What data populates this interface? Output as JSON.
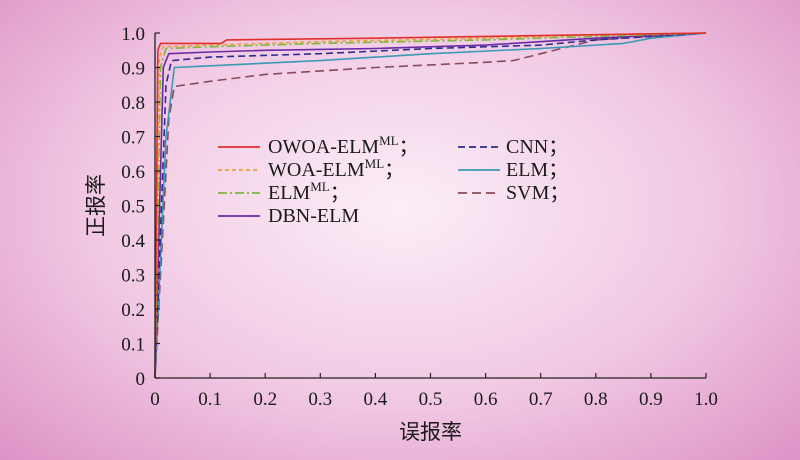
{
  "chart_data": {
    "type": "line",
    "title": "",
    "xlabel": "误报率",
    "ylabel": "正报率",
    "xlim": [
      0,
      1.0
    ],
    "ylim": [
      0,
      1.0
    ],
    "xticks": [
      "0",
      "0.1",
      "0.2",
      "0.3",
      "0.4",
      "0.5",
      "0.6",
      "0.7",
      "0.8",
      "0.9",
      "1.0"
    ],
    "yticks": [
      "0",
      "0.1",
      "0.2",
      "0.3",
      "0.4",
      "0.5",
      "0.6",
      "0.7",
      "0.8",
      "0.9",
      "1.0"
    ],
    "grid": false,
    "legend_position": "center-left, two columns",
    "series": [
      {
        "name": "OWOA-ELM",
        "superscript": "ML",
        "suffix": "；",
        "color": "#e0302a",
        "dash": "solid",
        "points": [
          [
            0,
            0
          ],
          [
            0.005,
            0.95
          ],
          [
            0.01,
            0.97
          ],
          [
            0.12,
            0.97
          ],
          [
            0.13,
            0.98
          ],
          [
            0.4,
            0.985
          ],
          [
            0.6,
            0.99
          ],
          [
            0.8,
            0.995
          ],
          [
            1.0,
            1.0
          ]
        ]
      },
      {
        "name": "WOA-ELM",
        "superscript": "ML",
        "suffix": "；",
        "color": "#e8a23a",
        "dash": "short-dash",
        "points": [
          [
            0,
            0
          ],
          [
            0.008,
            0.93
          ],
          [
            0.015,
            0.96
          ],
          [
            0.1,
            0.965
          ],
          [
            0.3,
            0.975
          ],
          [
            0.6,
            0.985
          ],
          [
            0.8,
            0.995
          ],
          [
            1.0,
            1.0
          ]
        ]
      },
      {
        "name": "ELM",
        "superscript": "ML",
        "suffix": "；",
        "color": "#7cb83a",
        "dash": "dash-dot",
        "points": [
          [
            0,
            0
          ],
          [
            0.01,
            0.9
          ],
          [
            0.02,
            0.955
          ],
          [
            0.1,
            0.96
          ],
          [
            0.3,
            0.97
          ],
          [
            0.6,
            0.98
          ],
          [
            0.8,
            0.99
          ],
          [
            1.0,
            1.0
          ]
        ]
      },
      {
        "name": "DBN-ELM",
        "superscript": "",
        "suffix": "",
        "color": "#6a2aa6",
        "dash": "solid",
        "points": [
          [
            0,
            0
          ],
          [
            0.015,
            0.9
          ],
          [
            0.025,
            0.94
          ],
          [
            0.1,
            0.945
          ],
          [
            0.2,
            0.95
          ],
          [
            0.4,
            0.955
          ],
          [
            0.6,
            0.965
          ],
          [
            0.8,
            0.985
          ],
          [
            1.0,
            1.0
          ]
        ]
      },
      {
        "name": "CNN",
        "superscript": "",
        "suffix": "；",
        "color": "#2d2d8f",
        "dash": "dash",
        "points": [
          [
            0,
            0
          ],
          [
            0.02,
            0.85
          ],
          [
            0.03,
            0.92
          ],
          [
            0.1,
            0.93
          ],
          [
            0.3,
            0.94
          ],
          [
            0.5,
            0.955
          ],
          [
            0.7,
            0.965
          ],
          [
            0.8,
            0.98
          ],
          [
            1.0,
            1.0
          ]
        ]
      },
      {
        "name": "ELM",
        "superscript": "",
        "suffix": "；",
        "color": "#3a9ab5",
        "dash": "solid",
        "points": [
          [
            0,
            0
          ],
          [
            0.02,
            0.7
          ],
          [
            0.035,
            0.9
          ],
          [
            0.1,
            0.905
          ],
          [
            0.3,
            0.92
          ],
          [
            0.5,
            0.94
          ],
          [
            0.7,
            0.955
          ],
          [
            0.85,
            0.97
          ],
          [
            0.9,
            0.985
          ],
          [
            1.0,
            1.0
          ]
        ]
      },
      {
        "name": "SVM",
        "superscript": "",
        "suffix": "；",
        "color": "#8a4a5a",
        "dash": "long-dash",
        "points": [
          [
            0,
            0
          ],
          [
            0.025,
            0.75
          ],
          [
            0.035,
            0.845
          ],
          [
            0.1,
            0.86
          ],
          [
            0.2,
            0.88
          ],
          [
            0.4,
            0.9
          ],
          [
            0.6,
            0.915
          ],
          [
            0.65,
            0.92
          ],
          [
            0.7,
            0.94
          ],
          [
            0.8,
            0.98
          ],
          [
            1.0,
            1.0
          ]
        ]
      }
    ]
  }
}
